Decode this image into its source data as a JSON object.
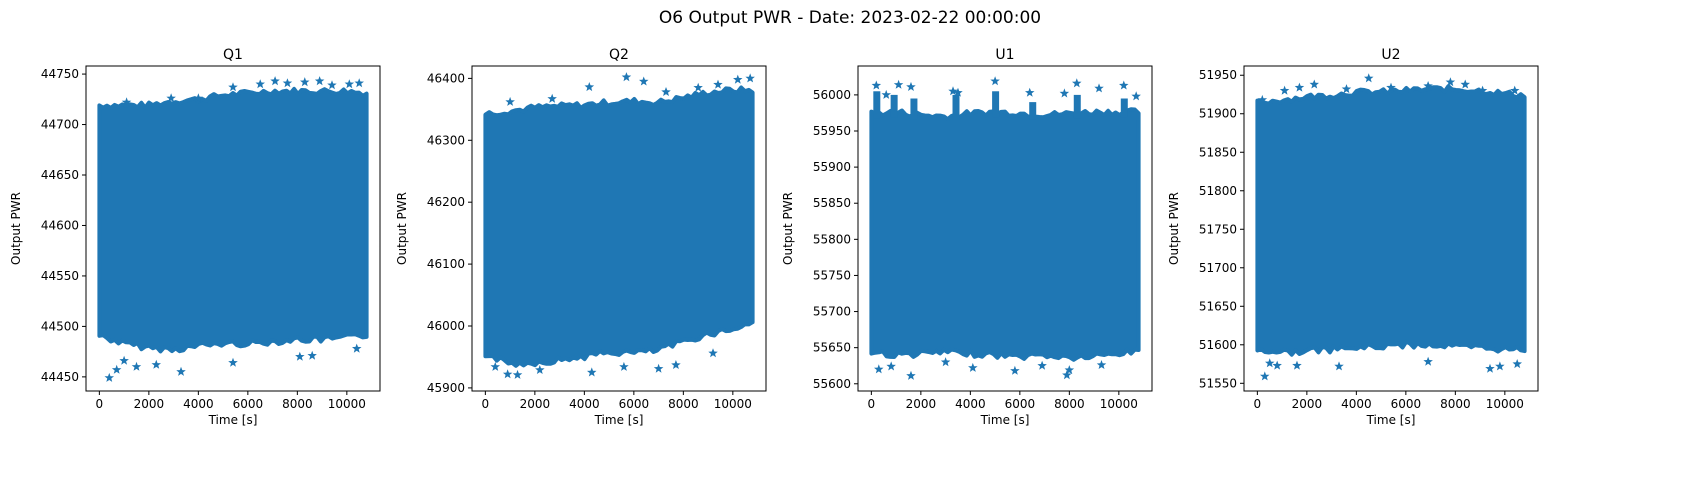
{
  "figure": {
    "suptitle": "O6 Output PWR - Date: 2023-02-22 00:00:00",
    "marker_color": "#1f77b4"
  },
  "chart_data": [
    {
      "type": "scatter",
      "title": "Q1",
      "xlabel": "Time [s]",
      "ylabel": "Output PWR",
      "xlim": [
        -540,
        11340
      ],
      "ylim": [
        44436,
        44758
      ],
      "xticks": [
        0,
        2000,
        4000,
        6000,
        8000,
        10000
      ],
      "yticks": [
        44450,
        44500,
        44550,
        44600,
        44650,
        44700,
        44750
      ],
      "marker": "star",
      "series": [
        {
          "x_range": [
            0,
            10800
          ],
          "band": [
            [
              0,
              44494,
              44716
            ],
            [
              1000,
              44486,
              44716
            ],
            [
              2000,
              44482,
              44716
            ],
            [
              3000,
              44480,
              44720
            ],
            [
              4000,
              44484,
              44722
            ],
            [
              5000,
              44486,
              44726
            ],
            [
              6000,
              44486,
              44728
            ],
            [
              7000,
              44488,
              44730
            ],
            [
              8000,
              44490,
              44730
            ],
            [
              9000,
              44490,
              44730
            ],
            [
              10000,
              44492,
              44730
            ],
            [
              10800,
              44494,
              44728
            ]
          ]
        }
      ],
      "outliers": [
        [
          400,
          44449
        ],
        [
          700,
          44457
        ],
        [
          1000,
          44466
        ],
        [
          1500,
          44460
        ],
        [
          2300,
          44462
        ],
        [
          3300,
          44455
        ],
        [
          5400,
          44464
        ],
        [
          8100,
          44470
        ],
        [
          8600,
          44471
        ],
        [
          10400,
          44478
        ],
        [
          1100,
          44722
        ],
        [
          2900,
          44726
        ],
        [
          4000,
          44726
        ],
        [
          5400,
          44737
        ],
        [
          6500,
          44740
        ],
        [
          7100,
          44743
        ],
        [
          7600,
          44741
        ],
        [
          8300,
          44742
        ],
        [
          8900,
          44743
        ],
        [
          10100,
          44740
        ],
        [
          10500,
          44741
        ],
        [
          9400,
          44739
        ]
      ]
    },
    {
      "type": "scatter",
      "title": "Q2",
      "xlabel": "Time [s]",
      "ylabel": "Output PWR",
      "xlim": [
        -540,
        11340
      ],
      "ylim": [
        45895,
        46420
      ],
      "xticks": [
        0,
        2000,
        4000,
        6000,
        8000,
        10000
      ],
      "yticks": [
        45900,
        46000,
        46100,
        46200,
        46300,
        46400
      ],
      "marker": "star",
      "series": [
        {
          "x_range": [
            0,
            10800
          ],
          "band": [
            [
              0,
              45960,
              46338
            ],
            [
              1000,
              45944,
              46342
            ],
            [
              2000,
              45946,
              46348
            ],
            [
              3000,
              45950,
              46350
            ],
            [
              4000,
              45956,
              46352
            ],
            [
              5000,
              45962,
              46356
            ],
            [
              6000,
              45962,
              46358
            ],
            [
              7000,
              45966,
              46356
            ],
            [
              8000,
              45980,
              46364
            ],
            [
              9000,
              45992,
              46372
            ],
            [
              10000,
              46000,
              46376
            ],
            [
              10800,
              46010,
              46376
            ]
          ]
        }
      ],
      "outliers": [
        [
          400,
          45934
        ],
        [
          900,
          45922
        ],
        [
          1300,
          45921
        ],
        [
          2200,
          45929
        ],
        [
          4300,
          45925
        ],
        [
          5600,
          45934
        ],
        [
          7000,
          45931
        ],
        [
          7700,
          45937
        ],
        [
          9200,
          45956
        ],
        [
          1000,
          46362
        ],
        [
          2700,
          46367
        ],
        [
          4200,
          46386
        ],
        [
          5700,
          46402
        ],
        [
          6400,
          46395
        ],
        [
          7300,
          46378
        ],
        [
          8600,
          46385
        ],
        [
          9400,
          46390
        ],
        [
          10200,
          46398
        ],
        [
          10700,
          46400
        ]
      ]
    },
    {
      "type": "scatter",
      "title": "U1",
      "xlabel": "Time [s]",
      "ylabel": "Output PWR",
      "xlim": [
        -540,
        11340
      ],
      "ylim": [
        55590,
        56040
      ],
      "xticks": [
        0,
        2000,
        4000,
        6000,
        8000,
        10000
      ],
      "yticks": [
        55600,
        55650,
        55700,
        55750,
        55800,
        55850,
        55900,
        55950,
        56000
      ],
      "marker": "star",
      "series": [
        {
          "x_range": [
            0,
            10800
          ],
          "band": [
            [
              0,
              55648,
              55970
            ],
            [
              1000,
              55644,
              55972
            ],
            [
              2000,
              55646,
              55968
            ],
            [
              3000,
              55648,
              55966
            ],
            [
              4000,
              55646,
              55970
            ],
            [
              5000,
              55644,
              55972
            ],
            [
              6000,
              55642,
              55970
            ],
            [
              7000,
              55644,
              55968
            ],
            [
              8000,
              55640,
              55970
            ],
            [
              9000,
              55642,
              55972
            ],
            [
              10000,
              55646,
              55972
            ],
            [
              10800,
              55650,
              55972
            ]
          ]
        }
      ],
      "outliers": [
        [
          200,
          56013
        ],
        [
          600,
          56000
        ],
        [
          1100,
          56014
        ],
        [
          1600,
          56011
        ],
        [
          3300,
          56005
        ],
        [
          3500,
          56003
        ],
        [
          5000,
          56019
        ],
        [
          6400,
          56003
        ],
        [
          7800,
          56002
        ],
        [
          8300,
          56016
        ],
        [
          9200,
          56009
        ],
        [
          10200,
          56013
        ],
        [
          10700,
          55998
        ],
        [
          300,
          55620
        ],
        [
          800,
          55624
        ],
        [
          1600,
          55611
        ],
        [
          3000,
          55630
        ],
        [
          4100,
          55622
        ],
        [
          5800,
          55618
        ],
        [
          6900,
          55625
        ],
        [
          7900,
          55612
        ],
        [
          8000,
          55619
        ],
        [
          9300,
          55626
        ]
      ],
      "spikes": [
        [
          200,
          56005
        ],
        [
          900,
          56000
        ],
        [
          1700,
          55995
        ],
        [
          3400,
          56000
        ],
        [
          5000,
          56005
        ],
        [
          6500,
          55990
        ],
        [
          8300,
          56000
        ],
        [
          10200,
          55995
        ]
      ]
    },
    {
      "type": "scatter",
      "title": "U2",
      "xlabel": "Time [s]",
      "ylabel": "Output PWR",
      "xlim": [
        -540,
        11340
      ],
      "ylim": [
        51540,
        51962
      ],
      "xticks": [
        0,
        2000,
        4000,
        6000,
        8000,
        10000
      ],
      "yticks": [
        51550,
        51600,
        51650,
        51700,
        51750,
        51800,
        51850,
        51900,
        51950
      ],
      "marker": "star",
      "series": [
        {
          "x_range": [
            0,
            10800
          ],
          "band": [
            [
              0,
              51598,
              51910
            ],
            [
              1000,
              51594,
              51914
            ],
            [
              2000,
              51596,
              51918
            ],
            [
              3000,
              51598,
              51920
            ],
            [
              4000,
              51600,
              51924
            ],
            [
              5000,
              51602,
              51924
            ],
            [
              6000,
              51604,
              51926
            ],
            [
              7000,
              51604,
              51928
            ],
            [
              8000,
              51602,
              51928
            ],
            [
              9000,
              51600,
              51926
            ],
            [
              10000,
              51598,
              51922
            ],
            [
              10800,
              51598,
              51920
            ]
          ]
        }
      ],
      "outliers": [
        [
          300,
          51559
        ],
        [
          500,
          51576
        ],
        [
          800,
          51573
        ],
        [
          1600,
          51573
        ],
        [
          3300,
          51572
        ],
        [
          6900,
          51578
        ],
        [
          9400,
          51569
        ],
        [
          9800,
          51572
        ],
        [
          10500,
          51575
        ],
        [
          200,
          51918
        ],
        [
          1100,
          51930
        ],
        [
          1700,
          51934
        ],
        [
          2300,
          51938
        ],
        [
          3600,
          51932
        ],
        [
          4500,
          51946
        ],
        [
          5400,
          51934
        ],
        [
          6900,
          51936
        ],
        [
          7800,
          51941
        ],
        [
          8400,
          51938
        ],
        [
          9100,
          51930
        ],
        [
          10400,
          51930
        ]
      ]
    }
  ]
}
